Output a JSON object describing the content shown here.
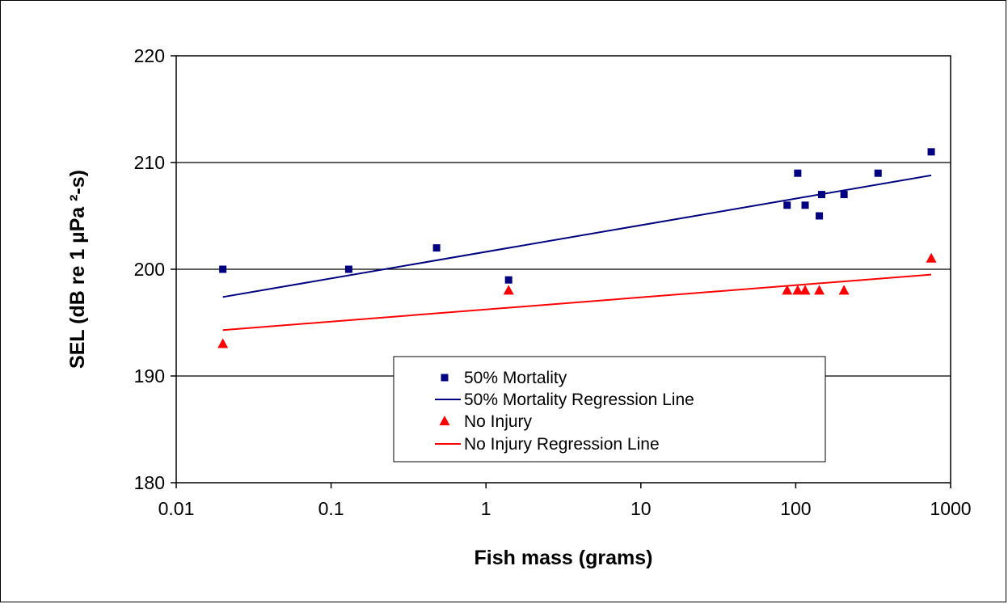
{
  "chart_data": {
    "type": "scatter",
    "x_scale": "log",
    "xlabel": "Fish mass (grams)",
    "ylabel": "SEL (dB re 1 µPa ²-s)",
    "xlim": [
      0.01,
      1000
    ],
    "ylim": [
      180,
      220
    ],
    "x_ticks": [
      "0.01",
      "0.1",
      "1",
      "10",
      "100",
      "1000"
    ],
    "y_ticks": [
      "180",
      "190",
      "200",
      "210",
      "220"
    ],
    "grid": "horizontal",
    "legend_position": "center-bottom",
    "series": [
      {
        "name": "50% Mortality",
        "kind": "points",
        "marker": "square",
        "color": "#000080",
        "points": [
          [
            0.02,
            200
          ],
          [
            0.13,
            200
          ],
          [
            0.48,
            202
          ],
          [
            1.4,
            199
          ],
          [
            88,
            206
          ],
          [
            103,
            209
          ],
          [
            115,
            206
          ],
          [
            142,
            205
          ],
          [
            147,
            207
          ],
          [
            205,
            207
          ],
          [
            340,
            209
          ],
          [
            750,
            211
          ]
        ]
      },
      {
        "name": "50% Mortality Regression Line",
        "kind": "line",
        "color": "#000080",
        "points": [
          [
            0.02,
            197.4
          ],
          [
            750,
            208.8
          ]
        ]
      },
      {
        "name": "No Injury",
        "kind": "points",
        "marker": "triangle",
        "color": "#ff0000",
        "points": [
          [
            0.02,
            193
          ],
          [
            1.4,
            198
          ],
          [
            88,
            198
          ],
          [
            103,
            198
          ],
          [
            115,
            198
          ],
          [
            142,
            198
          ],
          [
            205,
            198
          ],
          [
            750,
            201
          ]
        ]
      },
      {
        "name": "No Injury Regression Line",
        "kind": "line",
        "color": "#ff0000",
        "points": [
          [
            0.02,
            194.3
          ],
          [
            750,
            199.5
          ]
        ]
      }
    ]
  }
}
